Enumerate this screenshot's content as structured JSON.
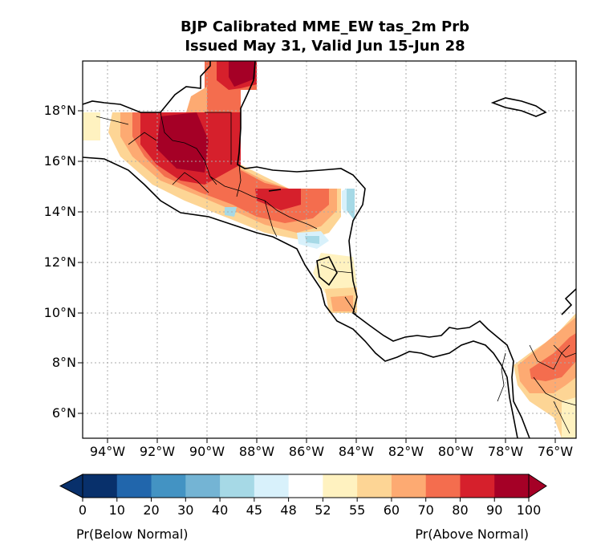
{
  "title": {
    "line1": "BJP Calibrated MME_EW tas_2m Prb",
    "line2": "Issued May 31, Valid Jun 15-Jun 28"
  },
  "lon_ticks": [
    "94°W",
    "92°W",
    "90°W",
    "88°W",
    "86°W",
    "84°W",
    "82°W",
    "80°W",
    "78°W",
    "76°W"
  ],
  "lat_ticks": [
    "18°N",
    "16°N",
    "14°N",
    "12°N",
    "10°N",
    "8°N",
    "6°N"
  ],
  "colorbar": {
    "ticks": [
      "0",
      "10",
      "20",
      "30",
      "40",
      "45",
      "48",
      "52",
      "55",
      "60",
      "70",
      "80",
      "90",
      "100"
    ],
    "colors": [
      "#08306b",
      "#2166ac",
      "#4393c3",
      "#74b4d4",
      "#a6d9e6",
      "#d8f1fb",
      "#ffffff",
      "#fff2c0",
      "#fdd595",
      "#fdaa72",
      "#f46d4e",
      "#d6202c",
      "#a50026"
    ],
    "below_label": "Pr(Below Normal)",
    "above_label": "Pr(Above Normal)"
  },
  "map": {
    "projection": "PlateCarree",
    "lon_range": [
      -95,
      -75.2
    ],
    "lat_range": [
      5,
      20
    ],
    "gridlines": true,
    "variable": "tas_2m probability"
  }
}
